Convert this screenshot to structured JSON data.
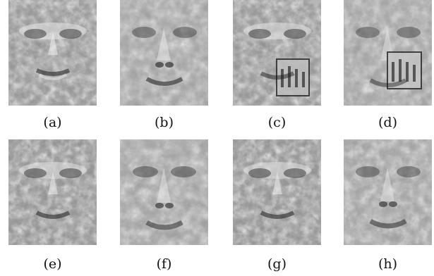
{
  "figure": {
    "panels": [
      {
        "label": "(a)",
        "variant": "a"
      },
      {
        "label": "(b)",
        "variant": "b"
      },
      {
        "label": "(c)",
        "variant": "c"
      },
      {
        "label": "(d)",
        "variant": "d"
      },
      {
        "label": "(e)",
        "variant": "e"
      },
      {
        "label": "(f)",
        "variant": "f"
      },
      {
        "label": "(g)",
        "variant": "g"
      },
      {
        "label": "(h)",
        "variant": "h"
      }
    ]
  },
  "colors": {
    "light": "#e8e8e8",
    "mid": "#8d8d8d",
    "dark": "#222222"
  }
}
